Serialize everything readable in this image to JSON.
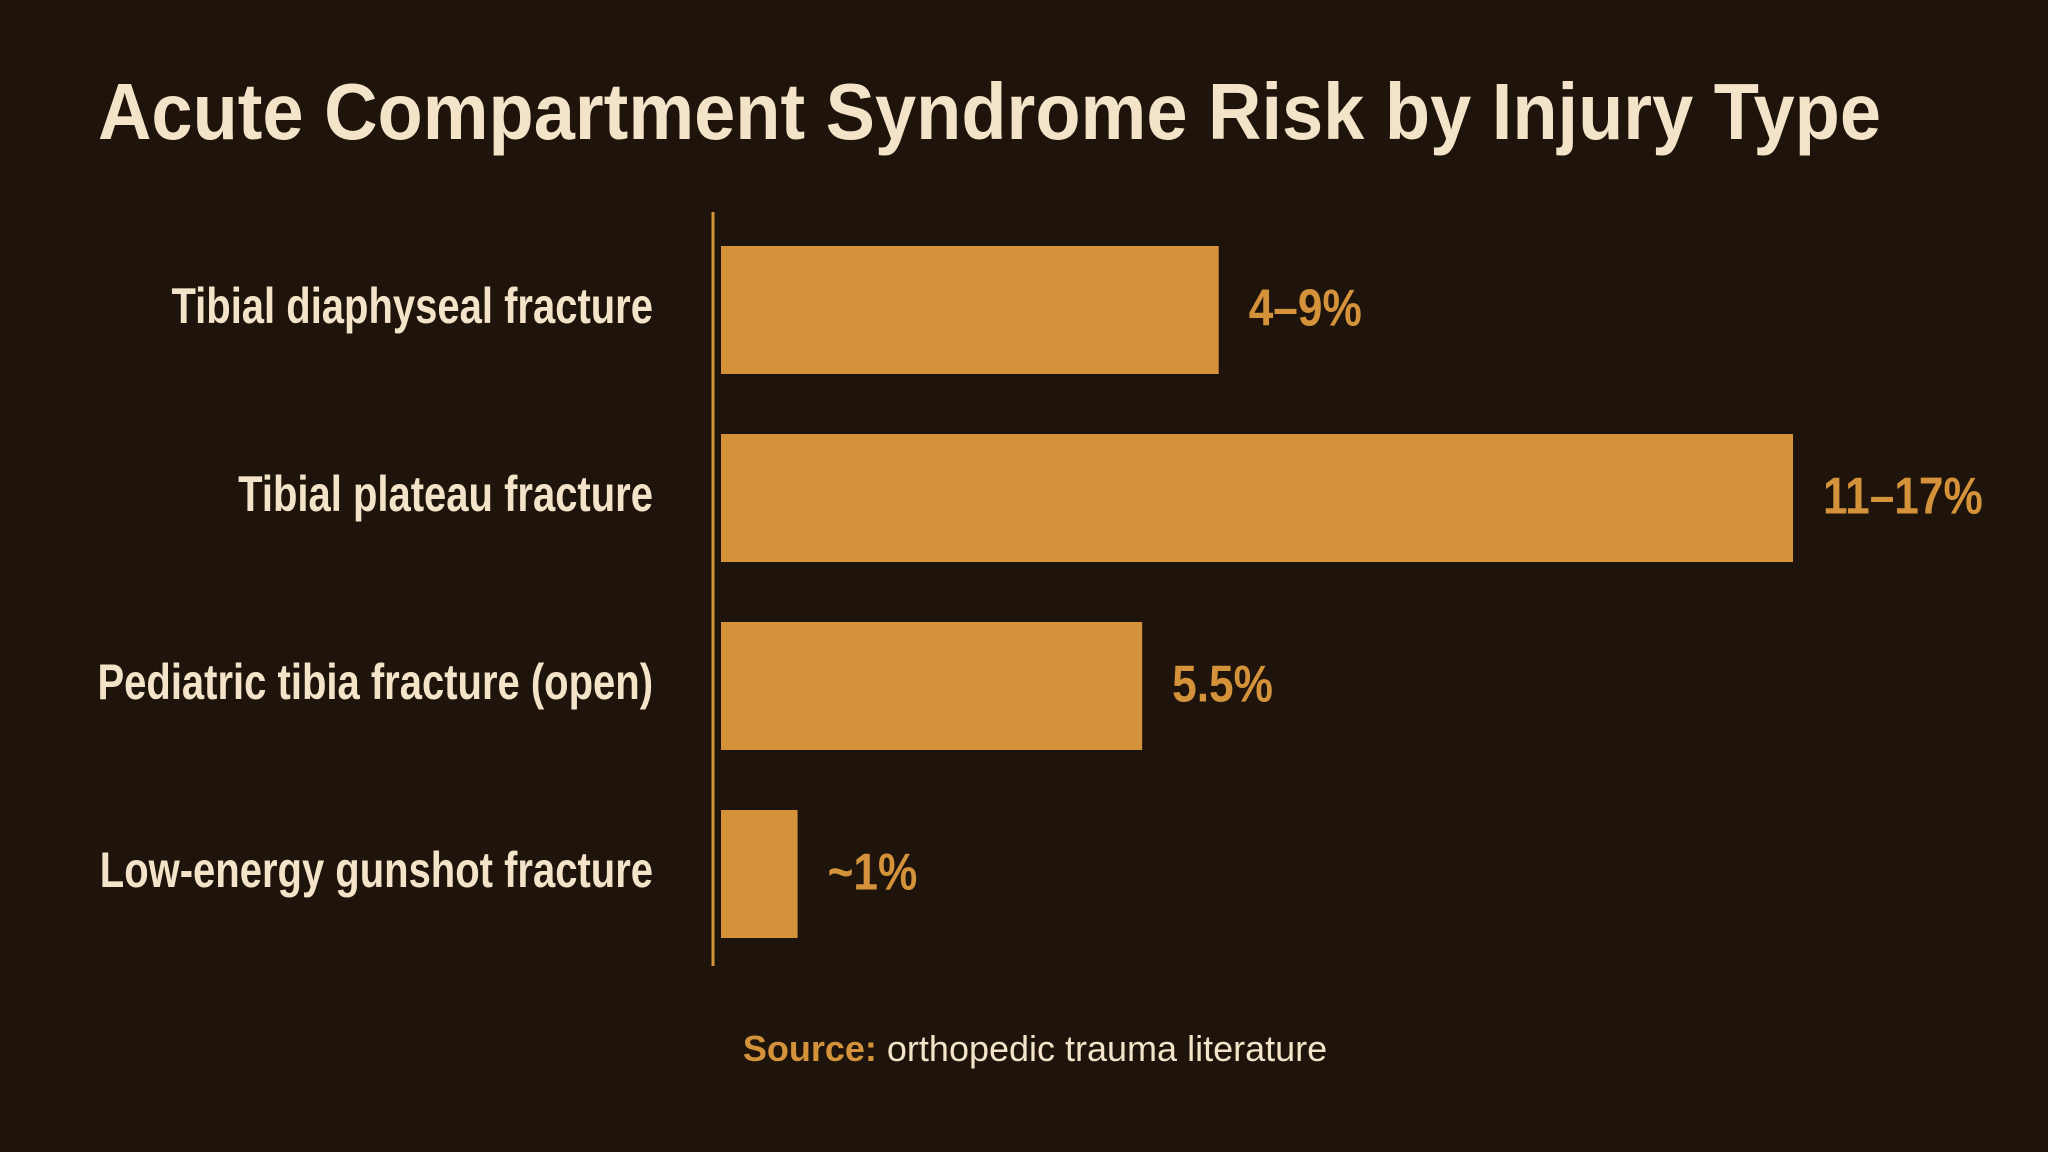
{
  "chart_data": {
    "type": "bar",
    "orientation": "horizontal",
    "title": "Acute Compartment Syndrome Risk by Injury Type",
    "categories": [
      "Tibial diaphyseal fracture",
      "Tibial plateau fracture",
      "Pediatric tibia fracture (open)",
      "Low-energy gunshot fracture"
    ],
    "values": [
      6.5,
      14,
      5.5,
      1
    ],
    "value_labels": [
      "4–9%",
      "11–17%",
      "5.5%",
      "~1%"
    ],
    "color": "#d4923a",
    "source_label": "Source:",
    "source": "orthopedic trauma literature"
  }
}
